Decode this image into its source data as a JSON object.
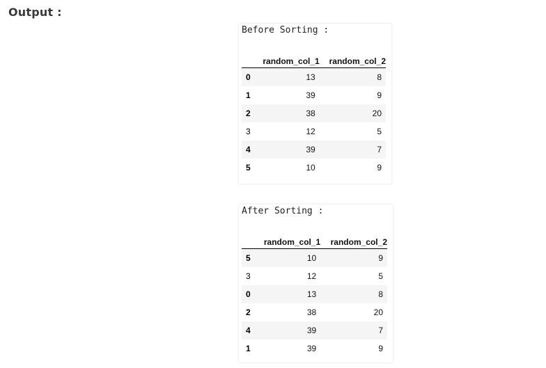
{
  "heading": "Output :",
  "before": {
    "title": "Before Sorting :",
    "columns": [
      "random_col_1",
      "random_col_2"
    ],
    "rows": [
      {
        "index": "0",
        "col1": "13",
        "col2": "8"
      },
      {
        "index": "1",
        "col1": "39",
        "col2": "9"
      },
      {
        "index": "2",
        "col1": "38",
        "col2": "20"
      },
      {
        "index": "3",
        "col1": "12",
        "col2": "5"
      },
      {
        "index": "4",
        "col1": "39",
        "col2": "7"
      },
      {
        "index": "5",
        "col1": "10",
        "col2": "9"
      }
    ]
  },
  "after": {
    "title": "After Sorting :",
    "columns": [
      "random_col_1",
      "random_col_2"
    ],
    "rows": [
      {
        "index": "5",
        "col1": "10",
        "col2": "9"
      },
      {
        "index": "3",
        "col1": "12",
        "col2": "5"
      },
      {
        "index": "0",
        "col1": "13",
        "col2": "8"
      },
      {
        "index": "2",
        "col1": "38",
        "col2": "20"
      },
      {
        "index": "4",
        "col1": "39",
        "col2": "7"
      },
      {
        "index": "1",
        "col1": "39",
        "col2": "9"
      }
    ]
  }
}
